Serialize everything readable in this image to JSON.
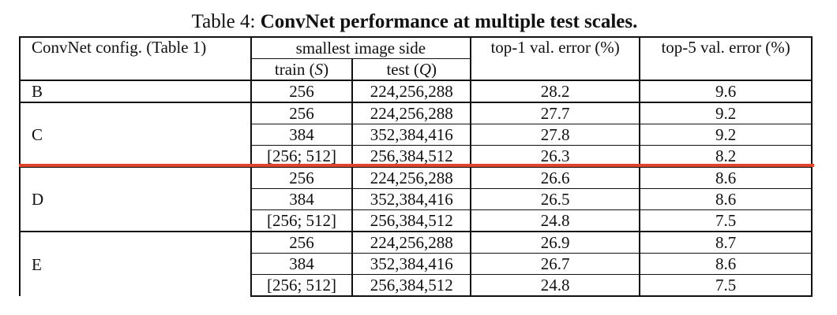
{
  "caption": {
    "prefix": "Table 4: ",
    "title": "ConvNet performance at multiple test scales."
  },
  "header": {
    "config": "ConvNet config. (Table 1)",
    "smallest_side": "smallest image side",
    "train": "train (S)",
    "test": "test (Q)",
    "top1": "top-1 val. error (%)",
    "top5": "top-5 val. error (%)"
  },
  "rows": [
    {
      "config": "B",
      "train": "256",
      "test": "224,256,288",
      "top1": "28.2",
      "top5": "9.6"
    },
    {
      "config": "C",
      "train": "256",
      "test": "224,256,288",
      "top1": "27.7",
      "top5": "9.2"
    },
    {
      "config": "",
      "train": "384",
      "test": "352,384,416",
      "top1": "27.8",
      "top5": "9.2"
    },
    {
      "config": "",
      "train": "[256; 512]",
      "test": "256,384,512",
      "top1": "26.3",
      "top5": "8.2"
    },
    {
      "config": "D",
      "train": "256",
      "test": "224,256,288",
      "top1": "26.6",
      "top5": "8.6"
    },
    {
      "config": "",
      "train": "384",
      "test": "352,384,416",
      "top1": "26.5",
      "top5": "8.6"
    },
    {
      "config": "",
      "train": "[256; 512]",
      "test": "256,384,512",
      "top1": "24.8",
      "top5": "7.5"
    },
    {
      "config": "E",
      "train": "256",
      "test": "224,256,288",
      "top1": "26.9",
      "top5": "8.7"
    },
    {
      "config": "",
      "train": "384",
      "test": "352,384,416",
      "top1": "26.7",
      "top5": "8.6"
    },
    {
      "config": "",
      "train": "[256; 512]",
      "test": "256,384,512",
      "top1": "24.8",
      "top5": "7.5"
    }
  ],
  "bold_cells": [
    "rows.6.top1",
    "rows.6.top5",
    "rows.9.top1",
    "rows.9.top5"
  ],
  "colors": {
    "annotation_line": "#e0442c",
    "text": "#111111"
  }
}
